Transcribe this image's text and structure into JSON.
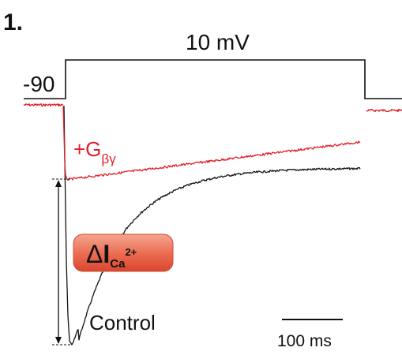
{
  "chart_data": {
    "type": "line",
    "panel_label": "1.",
    "protocol": {
      "holding_label": "-90",
      "step_label": "10 mV"
    },
    "series": [
      {
        "name": "Control",
        "color": "#111111",
        "label_text": "Control"
      },
      {
        "name": "+G",
        "subscript": "βγ",
        "color": "#e0202a",
        "label_text": "+G"
      }
    ],
    "annotation": {
      "delta": "Δ",
      "main": "I",
      "sub": "Ca",
      "sup": "2+",
      "badge_color": "#e8604a"
    },
    "scale_bar": {
      "value": 100,
      "label": "100 ms"
    }
  }
}
